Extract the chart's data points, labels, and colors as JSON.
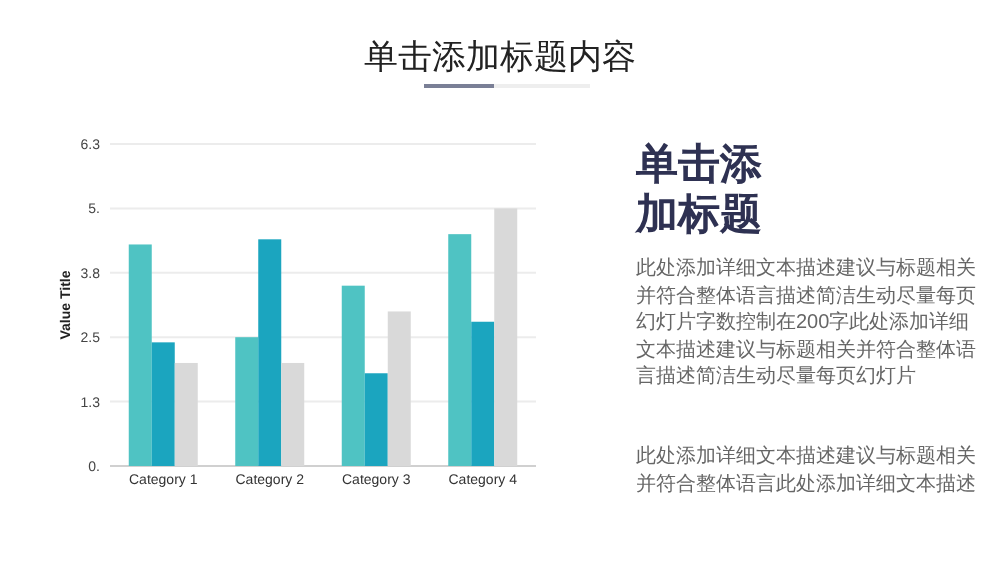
{
  "chart_data": {
    "type": "bar",
    "title": "单击添加标题内容",
    "ylabel": "Value Title",
    "categories": [
      "Category 1",
      "Category 2",
      "Category 3",
      "Category 4"
    ],
    "series": [
      {
        "color": "#4fc3c3",
        "values": [
          4.3,
          2.5,
          3.5,
          4.5
        ]
      },
      {
        "color": "#1ba5bf",
        "values": [
          2.4,
          4.4,
          1.8,
          2.8
        ]
      },
      {
        "color": "#d9d9d9",
        "values": [
          2.0,
          2.0,
          3.0,
          5.0
        ]
      }
    ],
    "ylim": [
      0,
      6.25
    ],
    "yticks": [
      {
        "value": 0,
        "label": "0."
      },
      {
        "value": 1.25,
        "label": "1.3"
      },
      {
        "value": 2.5,
        "label": "2.5"
      },
      {
        "value": 3.75,
        "label": "3.8"
      },
      {
        "value": 5,
        "label": "5."
      },
      {
        "value": 6.25,
        "label": "6.3"
      }
    ],
    "grid": "y",
    "annotations": [
      "单击添加标题",
      "此处添加详细文本描述建议与标题相关并符合整体语言描述简洁生动尽量每页幻灯片字数控制在200字此处添加详细文本描述建议与标题相关并符合整体语言描述简洁生动尽量每页幻灯片",
      "此处添加详细文本描述建议与标题相关并符合整体语言此处添加详细文本描述"
    ]
  }
}
